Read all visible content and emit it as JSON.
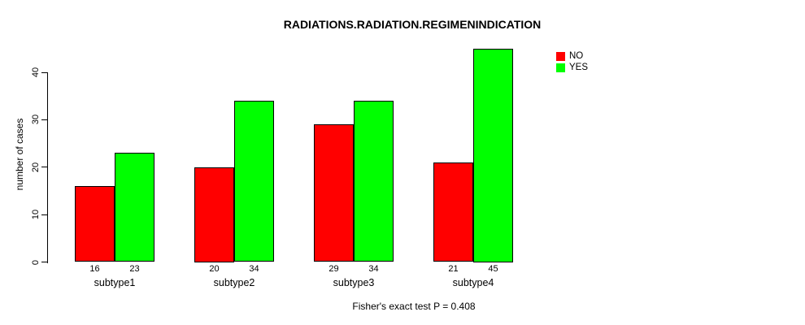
{
  "chart_data": {
    "type": "bar",
    "title": "RADIATIONS.RADIATION.REGIMENINDICATION",
    "categories": [
      "subtype1",
      "subtype2",
      "subtype3",
      "subtype4"
    ],
    "series": [
      {
        "name": "NO",
        "color": "#ff0000",
        "values": [
          16,
          20,
          29,
          21
        ]
      },
      {
        "name": "YES",
        "color": "#00ff00",
        "values": [
          23,
          34,
          34,
          45
        ]
      }
    ],
    "ylabel": "number of cases",
    "xlabel": "",
    "yticks": [
      0,
      10,
      20,
      30,
      40
    ],
    "ylim": [
      0,
      45
    ],
    "bar_value_labels": [
      [
        16,
        23
      ],
      [
        20,
        34
      ],
      [
        29,
        34
      ],
      [
        21,
        45
      ]
    ],
    "legend_position": "top-right",
    "grid": false,
    "annotation": "Fisher's exact test P = 0.408",
    "colors": {
      "background": "#ffffff",
      "axis": "#000000",
      "text": "#000000"
    }
  }
}
